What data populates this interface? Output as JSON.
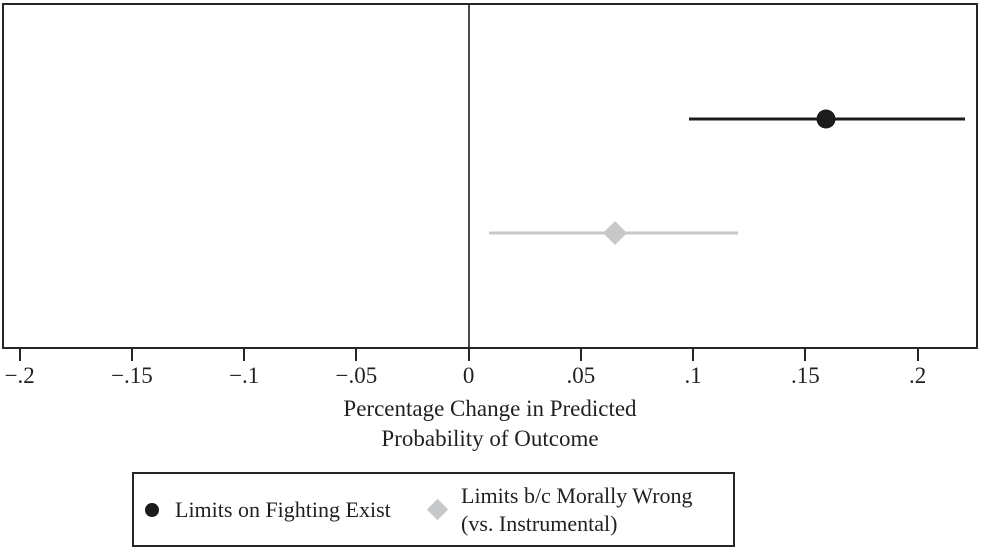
{
  "colors": {
    "series_black": "#1c1c1c",
    "series_gray": "#c6c8ca",
    "axis_border": "#262626",
    "reference_line": "#4a4a4a",
    "text": "#231f20",
    "background": "#ffffff"
  },
  "chart_data": {
    "type": "scatter",
    "subtype": "horizontal-coefficient-plot-with-ci",
    "title": "",
    "xlabel_lines": [
      "Percentage Change in Predicted",
      "Probability of Outcome"
    ],
    "xlabel": "Percentage Change in Predicted Probability of Outcome",
    "xlim": [
      -0.207,
      0.226
    ],
    "x_ticks": [
      -0.2,
      -0.15,
      -0.1,
      -0.05,
      0,
      0.05,
      0.1,
      0.15,
      0.2
    ],
    "x_tick_labels": [
      "−.2",
      "−.15",
      "−.1",
      "−.05",
      "0",
      ".05",
      ".1",
      ".15",
      ".2"
    ],
    "reference_line_x": 0,
    "grid": false,
    "legend_position": "bottom",
    "series": [
      {
        "name": "Limits on Fighting Exist",
        "marker": "circle",
        "color": "#1c1c1c",
        "estimate": 0.159,
        "ci_low": 0.098,
        "ci_high": 0.221
      },
      {
        "name": "Limits b/c Morally Wrong (vs. Instrumental)",
        "marker": "diamond",
        "color": "#c6c8ca",
        "estimate": 0.065,
        "ci_low": 0.009,
        "ci_high": 0.12
      }
    ],
    "legend": {
      "entries": [
        {
          "marker": "circle",
          "color": "#1c1c1c",
          "label": "Limits on Fighting Exist"
        },
        {
          "marker": "diamond",
          "color": "#c6c8ca",
          "label_line1": "Limits b/c Morally Wrong",
          "label_line2": "(vs. Instrumental)"
        }
      ]
    }
  }
}
